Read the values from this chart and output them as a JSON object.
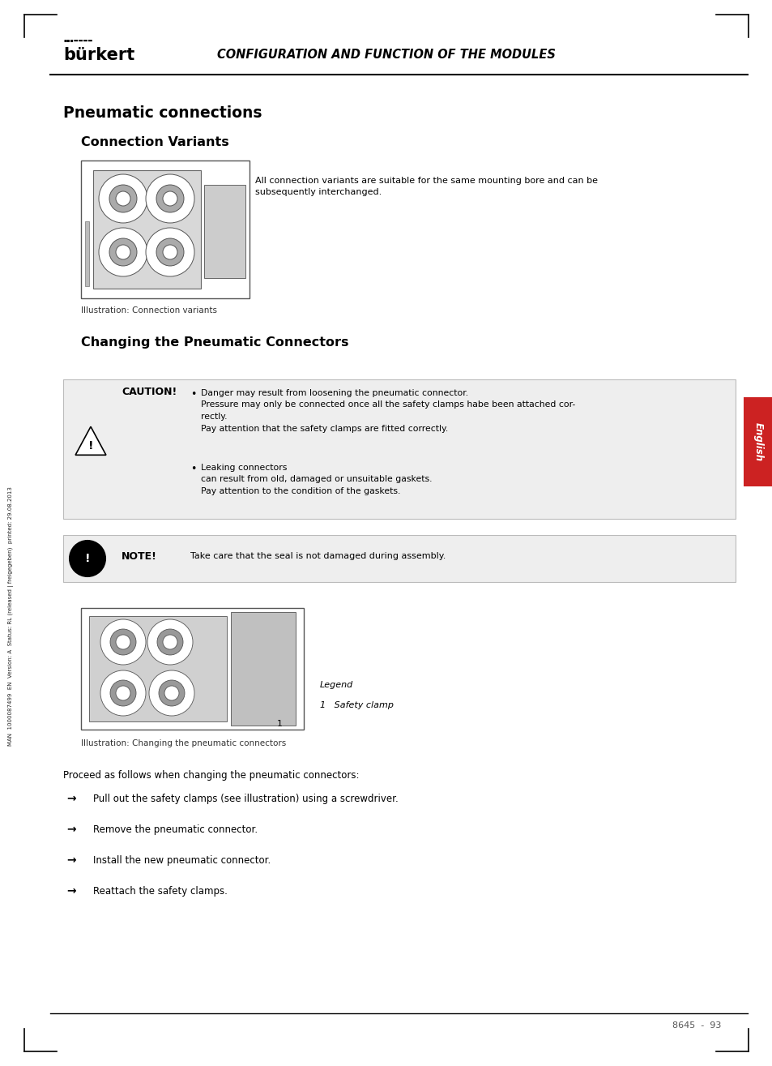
{
  "page_bg": "#ffffff",
  "logo_text": "bürkert",
  "header_title": "CONFIGURATION AND FUNCTION OF THE MODULES",
  "section1_title": "Pneumatic connections",
  "section2_title": "Connection Variants",
  "connection_variants_text": "All connection variants are suitable for the same mounting bore and can be\nsubsequently interchanged.",
  "illus1_caption": "Illustration: Connection variants",
  "section3_title": "Changing the Pneumatic Connectors",
  "caution_label": "CAUTION!",
  "caution_bullet1_line1": "Danger may result from loosening the pneumatic connector.",
  "caution_bullet1_line2": "Pressure may only be connected once all the safety clamps habe been attached cor-",
  "caution_bullet1_line3": "rectly.",
  "caution_bullet1_line4": "Pay attention that the safety clamps are fitted correctly.",
  "caution_bullet2_line1": "Leaking connectors",
  "caution_bullet2_line2": "can result from old, damaged or unsuitable gaskets.",
  "caution_bullet2_line3": "Pay attention to the condition of the gaskets.",
  "note_label": "NOTE!",
  "note_text": "Take care that the seal is not damaged during assembly.",
  "illus2_caption": "Illustration: Changing the pneumatic connectors",
  "legend_title": "Legend",
  "legend_item": "1   Safety clamp",
  "proceed_text": "Proceed as follows when changing the pneumatic connectors:",
  "arrow_steps": [
    "Pull out the safety clamps (see illustration) using a screwdriver.",
    "Remove the pneumatic connector.",
    "Install the new pneumatic connector.",
    "Reattach the safety clamps."
  ],
  "side_text": "MAN  1000087499  EN  Version: A  Status: RL (released | freigegeben)  printed: 29.08.2013",
  "english_tab_text": "English",
  "page_number": "8645  -  93"
}
